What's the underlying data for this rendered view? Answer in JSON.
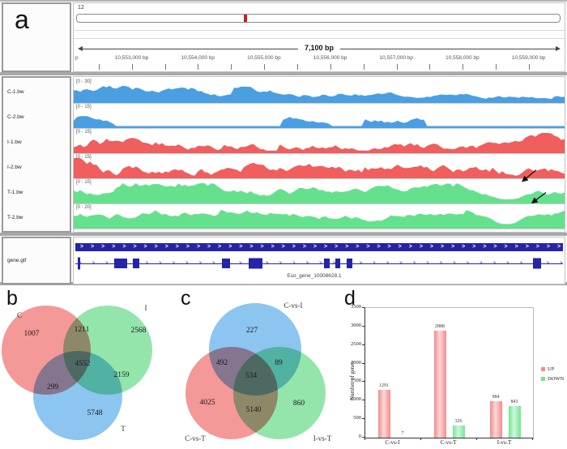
{
  "figure": {
    "panel_labels": {
      "a": "a",
      "b": "b",
      "c": "c",
      "d": "d"
    }
  },
  "igv": {
    "chromosome": "12",
    "span_label": "7,100 bp",
    "ruler_edge_label": "p",
    "ruler_ticks": [
      "10,553,000 bp",
      "10,554,000 bp",
      "10,555,000 bp",
      "10,556,000 bp",
      "10,557,000 bp",
      "10,558,000 bp",
      "10,559,000 bp"
    ],
    "ideogram_band_percent": 34.5,
    "ideogram_band_color": "#c8201f",
    "tracks": [
      {
        "name": "C-1.bw",
        "range": "[0 - 30]",
        "color": "#4a9fe3",
        "seed": 7,
        "base": 0.62,
        "var": 0.5,
        "taper": 0.62
      },
      {
        "name": "C-2.bw",
        "range": "[0 - 15]",
        "color": "#4a9fe3",
        "seed": 13,
        "base": 0.3,
        "var": 0.4,
        "sparse": true
      },
      {
        "name": "I-1.bw",
        "range": "[0 - 15]",
        "color": "#f15e5e",
        "seed": 21,
        "base": 0.18,
        "var": 0.45,
        "right_spike": true
      },
      {
        "name": "I-2.bw",
        "range": "[0 - 15]",
        "color": "#f15e5e",
        "seed": 34,
        "base": 0.24,
        "var": 0.55,
        "left_spike": true
      },
      {
        "name": "T-1.bw",
        "range": "[0 - 15]",
        "color": "#65e18e",
        "seed": 55,
        "base": 0.62,
        "var": 0.45,
        "dip": true
      },
      {
        "name": "T-2.bw",
        "range": "[0 - 20]",
        "color": "#65e18e",
        "seed": 89,
        "base": 0.66,
        "var": 0.4,
        "dip": true
      }
    ],
    "gene_track_name": "gene.gtf",
    "gene_id": "Eso_gene_10008628.1",
    "gene_color": "#2424a8",
    "gene_exons": [
      {
        "x": 0.5,
        "w": 0.5,
        "h": 15
      },
      {
        "x": 7.9,
        "w": 2.7,
        "h": 12
      },
      {
        "x": 11.8,
        "w": 1.3,
        "h": 12
      },
      {
        "x": 30.1,
        "w": 1.6,
        "h": 12
      },
      {
        "x": 35.5,
        "w": 2.8,
        "h": 13
      },
      {
        "x": 51.0,
        "w": 1.2,
        "h": 12
      },
      {
        "x": 53.3,
        "w": 1.0,
        "h": 12
      },
      {
        "x": 55.6,
        "w": 1.2,
        "h": 12
      },
      {
        "x": 93.8,
        "w": 1.7,
        "h": 13
      }
    ]
  },
  "chart_data": [
    {
      "id": "venn_b",
      "type": "venn",
      "title": "b",
      "sets": [
        "C",
        "I",
        "T"
      ],
      "labels": {
        "a": "C",
        "b": "I",
        "c": "T"
      },
      "regions": {
        "a_only": 1007,
        "ab": 1211,
        "b_only": 2568,
        "ac": 299,
        "abc": 4552,
        "bc": 2159,
        "c_only": 5748
      },
      "colors": {
        "a": "#f49898",
        "b": "#93e5ac",
        "c": "#8cc5f0"
      }
    },
    {
      "id": "venn_c",
      "type": "venn",
      "title": "c",
      "sets": [
        "C-vs-I",
        "C-vs-T",
        "I-vs-T"
      ],
      "labels": {
        "a": "C-vs-I",
        "b": "C-vs-T",
        "c": "I-vs-T"
      },
      "regions": {
        "a_only": 227,
        "ab": 492,
        "ac": 89,
        "abc": 534,
        "b_only": 4025,
        "bc": 5140,
        "c_only": 860
      },
      "colors": {
        "a": "#8cc5f0",
        "b": "#f49898",
        "c": "#93e5ac"
      }
    },
    {
      "id": "bar_d",
      "type": "bar",
      "title": "d",
      "categories": [
        "C-vs-I",
        "C-vs-T",
        "I-vs-T"
      ],
      "series": [
        {
          "name": "UP",
          "color": "#f28b8b",
          "values": [
            1291,
            2888,
            984
          ]
        },
        {
          "name": "DOWN",
          "color": "#72e591",
          "values": [
            7,
            326,
            843
          ]
        }
      ],
      "ylabel": "Number of genes",
      "ylim": [
        0,
        3500
      ],
      "ytick_step": 500,
      "legend_position": "right"
    }
  ]
}
